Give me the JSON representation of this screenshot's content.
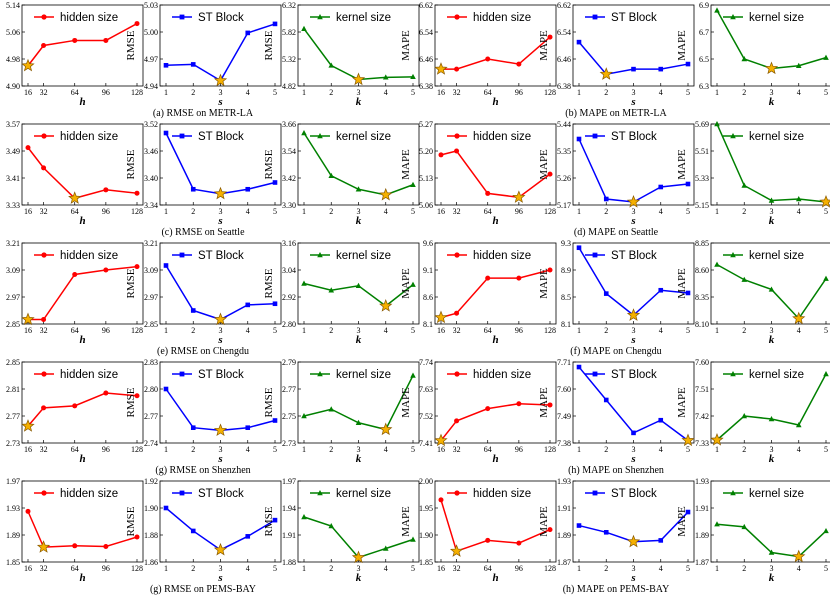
{
  "colors": {
    "hidden": "#ff0000",
    "block": "#0000ff",
    "kernel": "#008000",
    "star_fill": "#f5b000",
    "star_edge": "#8a5a00"
  },
  "chart_data": [
    {
      "type": "line",
      "metric": "RMSE",
      "param": "h",
      "legend": "hidden size",
      "color": "hidden",
      "x": [
        16,
        32,
        64,
        96,
        128
      ],
      "xtick_labels": [
        "16",
        "32",
        "64",
        "96",
        "128"
      ],
      "values": [
        4.96,
        5.02,
        5.035,
        5.035,
        5.085
      ],
      "ylim": [
        4.9,
        5.14
      ],
      "yticks": [
        "4.90",
        "4.98",
        "5.06",
        "5.14"
      ],
      "best": 0,
      "caption": "(a) RMSE on METR-LA"
    },
    {
      "type": "line",
      "metric": "RMSE",
      "param": "s",
      "legend": "ST Block",
      "color": "block",
      "x": [
        1,
        2,
        3,
        4,
        5
      ],
      "xtick_labels": [
        "1",
        "2",
        "3",
        "4",
        "5"
      ],
      "values": [
        4.963,
        4.964,
        4.946,
        4.999,
        5.009
      ],
      "ylim": [
        4.94,
        5.03
      ],
      "yticks": [
        "4.94",
        "4.97",
        "5.00",
        "5.03"
      ],
      "best": 2
    },
    {
      "type": "line",
      "metric": "RMSE",
      "param": "k",
      "legend": "kernel size",
      "color": "kernel",
      "x": [
        1,
        2,
        3,
        4,
        5
      ],
      "xtick_labels": [
        "1",
        "2",
        "3",
        "4",
        "5"
      ],
      "values": [
        5.88,
        5.2,
        4.94,
        4.98,
        4.99
      ],
      "ylim": [
        4.82,
        6.32
      ],
      "yticks": [
        "4.82",
        "5.32",
        "5.82",
        "6.32"
      ],
      "best": 2
    },
    {
      "type": "line",
      "metric": "MAPE",
      "param": "h",
      "legend": "hidden size",
      "color": "hidden",
      "x": [
        16,
        32,
        64,
        96,
        128
      ],
      "xtick_labels": [
        "16",
        "32",
        "64",
        "96",
        "128"
      ],
      "values": [
        6.43,
        6.43,
        6.46,
        6.445,
        6.525
      ],
      "ylim": [
        6.38,
        6.62
      ],
      "yticks": [
        "6.38",
        "6.46",
        "6.54",
        "6.62"
      ],
      "best": 0,
      "caption": "(b) MAPE on METR-LA"
    },
    {
      "type": "line",
      "metric": "MAPE",
      "param": "s",
      "legend": "ST Block",
      "color": "block",
      "x": [
        1,
        2,
        3,
        4,
        5
      ],
      "xtick_labels": [
        "1",
        "2",
        "3",
        "4",
        "5"
      ],
      "values": [
        6.51,
        6.415,
        6.43,
        6.43,
        6.445
      ],
      "ylim": [
        6.38,
        6.62
      ],
      "yticks": [
        "6.38",
        "6.46",
        "6.54",
        "6.62"
      ],
      "best": 1
    },
    {
      "type": "line",
      "metric": "MAPE",
      "param": "k",
      "legend": "kernel size",
      "color": "kernel",
      "x": [
        1,
        2,
        3,
        4,
        5
      ],
      "xtick_labels": [
        "1",
        "2",
        "3",
        "4",
        "5"
      ],
      "values": [
        6.86,
        6.5,
        6.43,
        6.45,
        6.51
      ],
      "ylim": [
        6.3,
        6.9
      ],
      "yticks": [
        "6.3",
        "6.5",
        "6.7",
        "6.9"
      ],
      "best": 2
    },
    {
      "type": "line",
      "metric": "RMSE",
      "param": "h",
      "legend": "hidden size",
      "color": "hidden",
      "x": [
        16,
        32,
        64,
        96,
        128
      ],
      "xtick_labels": [
        "16",
        "32",
        "64",
        "96",
        "128"
      ],
      "values": [
        3.5,
        3.44,
        3.35,
        3.375,
        3.365
      ],
      "ylim": [
        3.33,
        3.57
      ],
      "yticks": [
        "3.33",
        "3.41",
        "3.49",
        "3.57"
      ],
      "best": 2,
      "caption": "(c) RMSE on Seattle"
    },
    {
      "type": "line",
      "metric": "RMSE",
      "param": "s",
      "legend": "ST Block",
      "color": "block",
      "x": [
        1,
        2,
        3,
        4,
        5
      ],
      "xtick_labels": [
        "1",
        "2",
        "3",
        "4",
        "5"
      ],
      "values": [
        3.5,
        3.375,
        3.365,
        3.375,
        3.39
      ],
      "ylim": [
        3.34,
        3.52
      ],
      "yticks": [
        "3.34",
        "3.40",
        "3.46",
        "3.52"
      ],
      "best": 2
    },
    {
      "type": "line",
      "metric": "RMSE",
      "param": "k",
      "legend": "kernel size",
      "color": "kernel",
      "x": [
        1,
        2,
        3,
        4,
        5
      ],
      "xtick_labels": [
        "1",
        "2",
        "3",
        "4",
        "5"
      ],
      "values": [
        3.62,
        3.43,
        3.37,
        3.345,
        3.39
      ],
      "ylim": [
        3.3,
        3.66
      ],
      "yticks": [
        "3.30",
        "3.42",
        "3.54",
        "3.66"
      ],
      "best": 3
    },
    {
      "type": "line",
      "metric": "MAPE",
      "param": "h",
      "legend": "hidden size",
      "color": "hidden",
      "x": [
        16,
        32,
        64,
        96,
        128
      ],
      "xtick_labels": [
        "16",
        "32",
        "64",
        "96",
        "128"
      ],
      "values": [
        5.19,
        5.2,
        5.09,
        5.08,
        5.14
      ],
      "ylim": [
        5.06,
        5.27
      ],
      "yticks": [
        "5.06",
        "5.13",
        "5.20",
        "5.27"
      ],
      "best": 3,
      "caption": "(d) MAPE on Seattle"
    },
    {
      "type": "line",
      "metric": "MAPE",
      "param": "s",
      "legend": "ST Block",
      "color": "block",
      "x": [
        1,
        2,
        3,
        4,
        5
      ],
      "xtick_labels": [
        "1",
        "2",
        "3",
        "4",
        "5"
      ],
      "values": [
        5.39,
        5.19,
        5.18,
        5.23,
        5.24
      ],
      "ylim": [
        5.17,
        5.44
      ],
      "yticks": [
        "5.17",
        "5.26",
        "5.35",
        "5.44"
      ],
      "best": 2
    },
    {
      "type": "line",
      "metric": "MAPE",
      "param": "k",
      "legend": "kernel size",
      "color": "kernel",
      "x": [
        1,
        2,
        3,
        4,
        5
      ],
      "xtick_labels": [
        "1",
        "2",
        "3",
        "4",
        "5"
      ],
      "values": [
        5.69,
        5.28,
        5.18,
        5.19,
        5.17
      ],
      "ylim": [
        5.15,
        5.69
      ],
      "yticks": [
        "5.15",
        "5.33",
        "5.51",
        "5.69"
      ],
      "best": 4
    },
    {
      "type": "line",
      "metric": "RMSE",
      "param": "h",
      "legend": "hidden size",
      "color": "hidden",
      "x": [
        16,
        32,
        64,
        96,
        128
      ],
      "xtick_labels": [
        "16",
        "32",
        "64",
        "96",
        "128"
      ],
      "values": [
        2.87,
        2.87,
        3.07,
        3.09,
        3.105
      ],
      "ylim": [
        2.85,
        3.21
      ],
      "yticks": [
        "2.85",
        "2.97",
        "3.09",
        "3.21"
      ],
      "best": 0,
      "caption": "(e) RMSE on Chengdu"
    },
    {
      "type": "line",
      "metric": "RMSE",
      "param": "s",
      "legend": "ST Block",
      "color": "block",
      "x": [
        1,
        2,
        3,
        4,
        5
      ],
      "xtick_labels": [
        "1",
        "2",
        "3",
        "4",
        "5"
      ],
      "values": [
        3.11,
        2.91,
        2.87,
        2.935,
        2.94
      ],
      "ylim": [
        2.85,
        3.21
      ],
      "yticks": [
        "2.85",
        "2.97",
        "3.09",
        "3.21"
      ],
      "best": 2
    },
    {
      "type": "line",
      "metric": "RMSE",
      "param": "k",
      "legend": "kernel size",
      "color": "kernel",
      "x": [
        1,
        2,
        3,
        4,
        5
      ],
      "xtick_labels": [
        "1",
        "2",
        "3",
        "4",
        "5"
      ],
      "values": [
        2.98,
        2.95,
        2.97,
        2.88,
        2.975
      ],
      "ylim": [
        2.8,
        3.16
      ],
      "yticks": [
        "2.80",
        "2.92",
        "3.04",
        "3.16"
      ],
      "best": 3
    },
    {
      "type": "line",
      "metric": "MAPE",
      "param": "h",
      "legend": "hidden size",
      "color": "hidden",
      "x": [
        16,
        32,
        64,
        96,
        128
      ],
      "xtick_labels": [
        "16",
        "32",
        "64",
        "96",
        "128"
      ],
      "values": [
        8.22,
        8.3,
        8.95,
        8.95,
        9.1
      ],
      "ylim": [
        8.1,
        9.6
      ],
      "yticks": [
        "8.1",
        "8.6",
        "9.1",
        "9.6"
      ],
      "best": 0,
      "caption": "(f) MAPE on Chengdu"
    },
    {
      "type": "line",
      "metric": "MAPE",
      "param": "s",
      "legend": "ST Block",
      "color": "block",
      "x": [
        1,
        2,
        3,
        4,
        5
      ],
      "xtick_labels": [
        "1",
        "2",
        "3",
        "4",
        "5"
      ],
      "values": [
        9.23,
        8.55,
        8.23,
        8.6,
        8.56
      ],
      "ylim": [
        8.1,
        9.3
      ],
      "yticks": [
        "8.1",
        "8.5",
        "8.9",
        "9.3"
      ],
      "best": 2
    },
    {
      "type": "line",
      "metric": "MAPE",
      "param": "k",
      "legend": "kernel size",
      "color": "kernel",
      "x": [
        1,
        2,
        3,
        4,
        5
      ],
      "xtick_labels": [
        "1",
        "2",
        "3",
        "4",
        "5"
      ],
      "values": [
        8.65,
        8.51,
        8.42,
        8.15,
        8.52
      ],
      "ylim": [
        8.1,
        8.85
      ],
      "yticks": [
        "8.10",
        "8.35",
        "8.60",
        "8.85"
      ],
      "best": 3
    },
    {
      "type": "line",
      "metric": "RMSE",
      "param": "h",
      "legend": "hidden size",
      "color": "hidden",
      "x": [
        16,
        32,
        64,
        96,
        128
      ],
      "xtick_labels": [
        "16",
        "32",
        "64",
        "96",
        "128"
      ],
      "values": [
        2.755,
        2.782,
        2.785,
        2.804,
        2.8
      ],
      "ylim": [
        2.73,
        2.85
      ],
      "yticks": [
        "2.73",
        "2.77",
        "2.81",
        "2.85"
      ],
      "best": 0,
      "caption": "(g) RMSE on Shenzhen"
    },
    {
      "type": "line",
      "metric": "RMSE",
      "param": "s",
      "legend": "ST Block",
      "color": "block",
      "x": [
        1,
        2,
        3,
        4,
        5
      ],
      "xtick_labels": [
        "1",
        "2",
        "3",
        "4",
        "5"
      ],
      "values": [
        2.8,
        2.757,
        2.754,
        2.757,
        2.765
      ],
      "ylim": [
        2.74,
        2.83
      ],
      "yticks": [
        "2.74",
        "2.77",
        "2.80",
        "2.83"
      ],
      "best": 2
    },
    {
      "type": "line",
      "metric": "RMSE",
      "param": "k",
      "legend": "kernel size",
      "color": "kernel",
      "x": [
        1,
        2,
        3,
        4,
        5
      ],
      "xtick_labels": [
        "1",
        "2",
        "3",
        "4",
        "5"
      ],
      "values": [
        2.75,
        2.755,
        2.745,
        2.74,
        2.78
      ],
      "ylim": [
        2.73,
        2.79
      ],
      "yticks": [
        "2.73",
        "2.75",
        "2.77",
        "2.79"
      ],
      "best": 3
    },
    {
      "type": "line",
      "metric": "MAPE",
      "param": "h",
      "legend": "hidden size",
      "color": "hidden",
      "x": [
        16,
        32,
        64,
        96,
        128
      ],
      "xtick_labels": [
        "16",
        "32",
        "64",
        "96",
        "128"
      ],
      "values": [
        7.42,
        7.5,
        7.55,
        7.57,
        7.565
      ],
      "ylim": [
        7.41,
        7.74
      ],
      "yticks": [
        "7.41",
        "7.52",
        "7.63",
        "7.74"
      ],
      "best": 0,
      "caption": "(h) MAPE on Shenzhen"
    },
    {
      "type": "line",
      "metric": "MAPE",
      "param": "s",
      "legend": "ST Block",
      "color": "block",
      "x": [
        1,
        2,
        3,
        4,
        5
      ],
      "xtick_labels": [
        "1",
        "2",
        "3",
        "4",
        "5"
      ],
      "values": [
        7.68,
        7.55,
        7.42,
        7.47,
        7.39
      ],
      "ylim": [
        7.38,
        7.7
      ],
      "yticks": [
        "7.38",
        "7.49",
        "7.60",
        "7.71"
      ],
      "best": 4
    },
    {
      "type": "line",
      "metric": "MAPE",
      "param": "k",
      "legend": "kernel size",
      "color": "kernel",
      "x": [
        1,
        2,
        3,
        4,
        5
      ],
      "xtick_labels": [
        "1",
        "2",
        "3",
        "4",
        "5"
      ],
      "values": [
        7.34,
        7.42,
        7.41,
        7.39,
        7.56
      ],
      "ylim": [
        7.33,
        7.6
      ],
      "yticks": [
        "7.33",
        "7.42",
        "7.51",
        "7.60"
      ],
      "best": 0
    },
    {
      "type": "line",
      "metric": "RMSE",
      "param": "h",
      "legend": "hidden size",
      "color": "hidden",
      "x": [
        16,
        32,
        64,
        96,
        128
      ],
      "xtick_labels": [
        "16",
        "32",
        "64",
        "96",
        "128"
      ],
      "values": [
        1.925,
        1.872,
        1.874,
        1.873,
        1.887
      ],
      "ylim": [
        1.85,
        1.97
      ],
      "yticks": [
        "1.85",
        "1.89",
        "1.93",
        "1.97"
      ],
      "best": 1,
      "caption": "(g) RMSE on PEMS-BAY"
    },
    {
      "type": "line",
      "metric": "RMSE",
      "param": "s",
      "legend": "ST Block",
      "color": "block",
      "x": [
        1,
        2,
        3,
        4,
        5
      ],
      "xtick_labels": [
        "1",
        "2",
        "3",
        "4",
        "5"
      ],
      "values": [
        1.9,
        1.883,
        1.869,
        1.879,
        1.891
      ],
      "ylim": [
        1.86,
        1.92
      ],
      "yticks": [
        "1.86",
        "1.88",
        "1.90",
        "1.92"
      ],
      "best": 2
    },
    {
      "type": "line",
      "metric": "RMSE",
      "param": "k",
      "legend": "kernel size",
      "color": "kernel",
      "x": [
        1,
        2,
        3,
        4,
        5
      ],
      "xtick_labels": [
        "1",
        "2",
        "3",
        "4",
        "5"
      ],
      "values": [
        1.93,
        1.92,
        1.885,
        1.895,
        1.905
      ],
      "ylim": [
        1.88,
        1.97
      ],
      "yticks": [
        "1.88",
        "1.91",
        "1.94",
        "1.97"
      ],
      "best": 2
    },
    {
      "type": "line",
      "metric": "MAPE",
      "param": "h",
      "legend": "hidden size",
      "color": "hidden",
      "x": [
        16,
        32,
        64,
        96,
        128
      ],
      "xtick_labels": [
        "16",
        "32",
        "64",
        "96",
        "128"
      ],
      "values": [
        1.965,
        1.87,
        1.89,
        1.885,
        1.91
      ],
      "ylim": [
        1.85,
        2.0
      ],
      "yticks": [
        "1.85",
        "1.90",
        "1.95",
        "2.00"
      ],
      "best": 1,
      "caption": "(h) MAPE on PEMS-BAY"
    },
    {
      "type": "line",
      "metric": "MAPE",
      "param": "s",
      "legend": "ST Block",
      "color": "block",
      "x": [
        1,
        2,
        3,
        4,
        5
      ],
      "xtick_labels": [
        "1",
        "2",
        "3",
        "4",
        "5"
      ],
      "values": [
        1.897,
        1.892,
        1.885,
        1.886,
        1.907
      ],
      "ylim": [
        1.87,
        1.93
      ],
      "yticks": [
        "1.87",
        "1.89",
        "1.91",
        "1.93"
      ],
      "best": 2
    },
    {
      "type": "line",
      "metric": "MAPE",
      "param": "k",
      "legend": "kernel size",
      "color": "kernel",
      "x": [
        1,
        2,
        3,
        4,
        5
      ],
      "xtick_labels": [
        "1",
        "2",
        "3",
        "4",
        "5"
      ],
      "values": [
        1.898,
        1.896,
        1.877,
        1.874,
        1.893
      ],
      "ylim": [
        1.87,
        1.93
      ],
      "yticks": [
        "1.87",
        "1.89",
        "1.91",
        "1.93"
      ],
      "best": 3
    }
  ]
}
